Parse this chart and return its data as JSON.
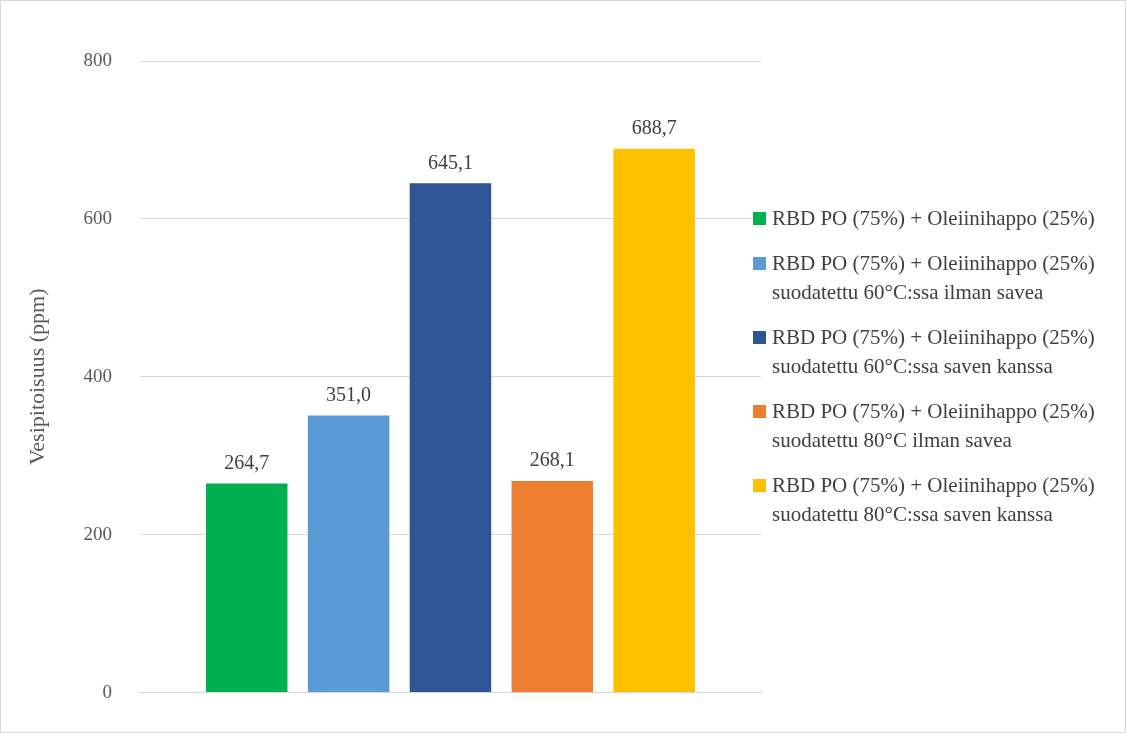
{
  "chart_data": {
    "type": "bar",
    "ylabel": "Vesipitoisuus (ppm)",
    "categories": [
      null
    ],
    "ylim": [
      0,
      800
    ],
    "yticks": [
      0,
      200,
      400,
      600,
      800
    ],
    "grid": "y",
    "legend": "right",
    "series": [
      {
        "name": "RBD PO (75%) + Oleiinihappo (25%)",
        "color": "#00b050",
        "values": [
          264.7
        ],
        "value_labels": [
          "264,7"
        ]
      },
      {
        "name": "RBD PO (75%) + Oleiinihappo (25%) suodatettu 60°C:ssa ilman savea",
        "color": "#5b9bd5",
        "values": [
          351.0
        ],
        "value_labels": [
          "351,0"
        ]
      },
      {
        "name": "RBD PO (75%) + Oleiinihappo (25%) suodatettu 60°C:ssa saven kanssa",
        "color": "#2f5597",
        "values": [
          645.1
        ],
        "value_labels": [
          "645,1"
        ]
      },
      {
        "name": "RBD PO (75%) + Oleiinihappo (25%) suodatettu 80°C ilman savea",
        "color": "#ed7d31",
        "values": [
          268.1
        ],
        "value_labels": [
          "268,1"
        ]
      },
      {
        "name": "RBD PO (75%) + Oleiinihappo (25%) suodatettu 80°C:ssa saven kanssa",
        "color": "#ffc000",
        "values": [
          688.7
        ],
        "value_labels": [
          "688,7"
        ]
      }
    ]
  }
}
